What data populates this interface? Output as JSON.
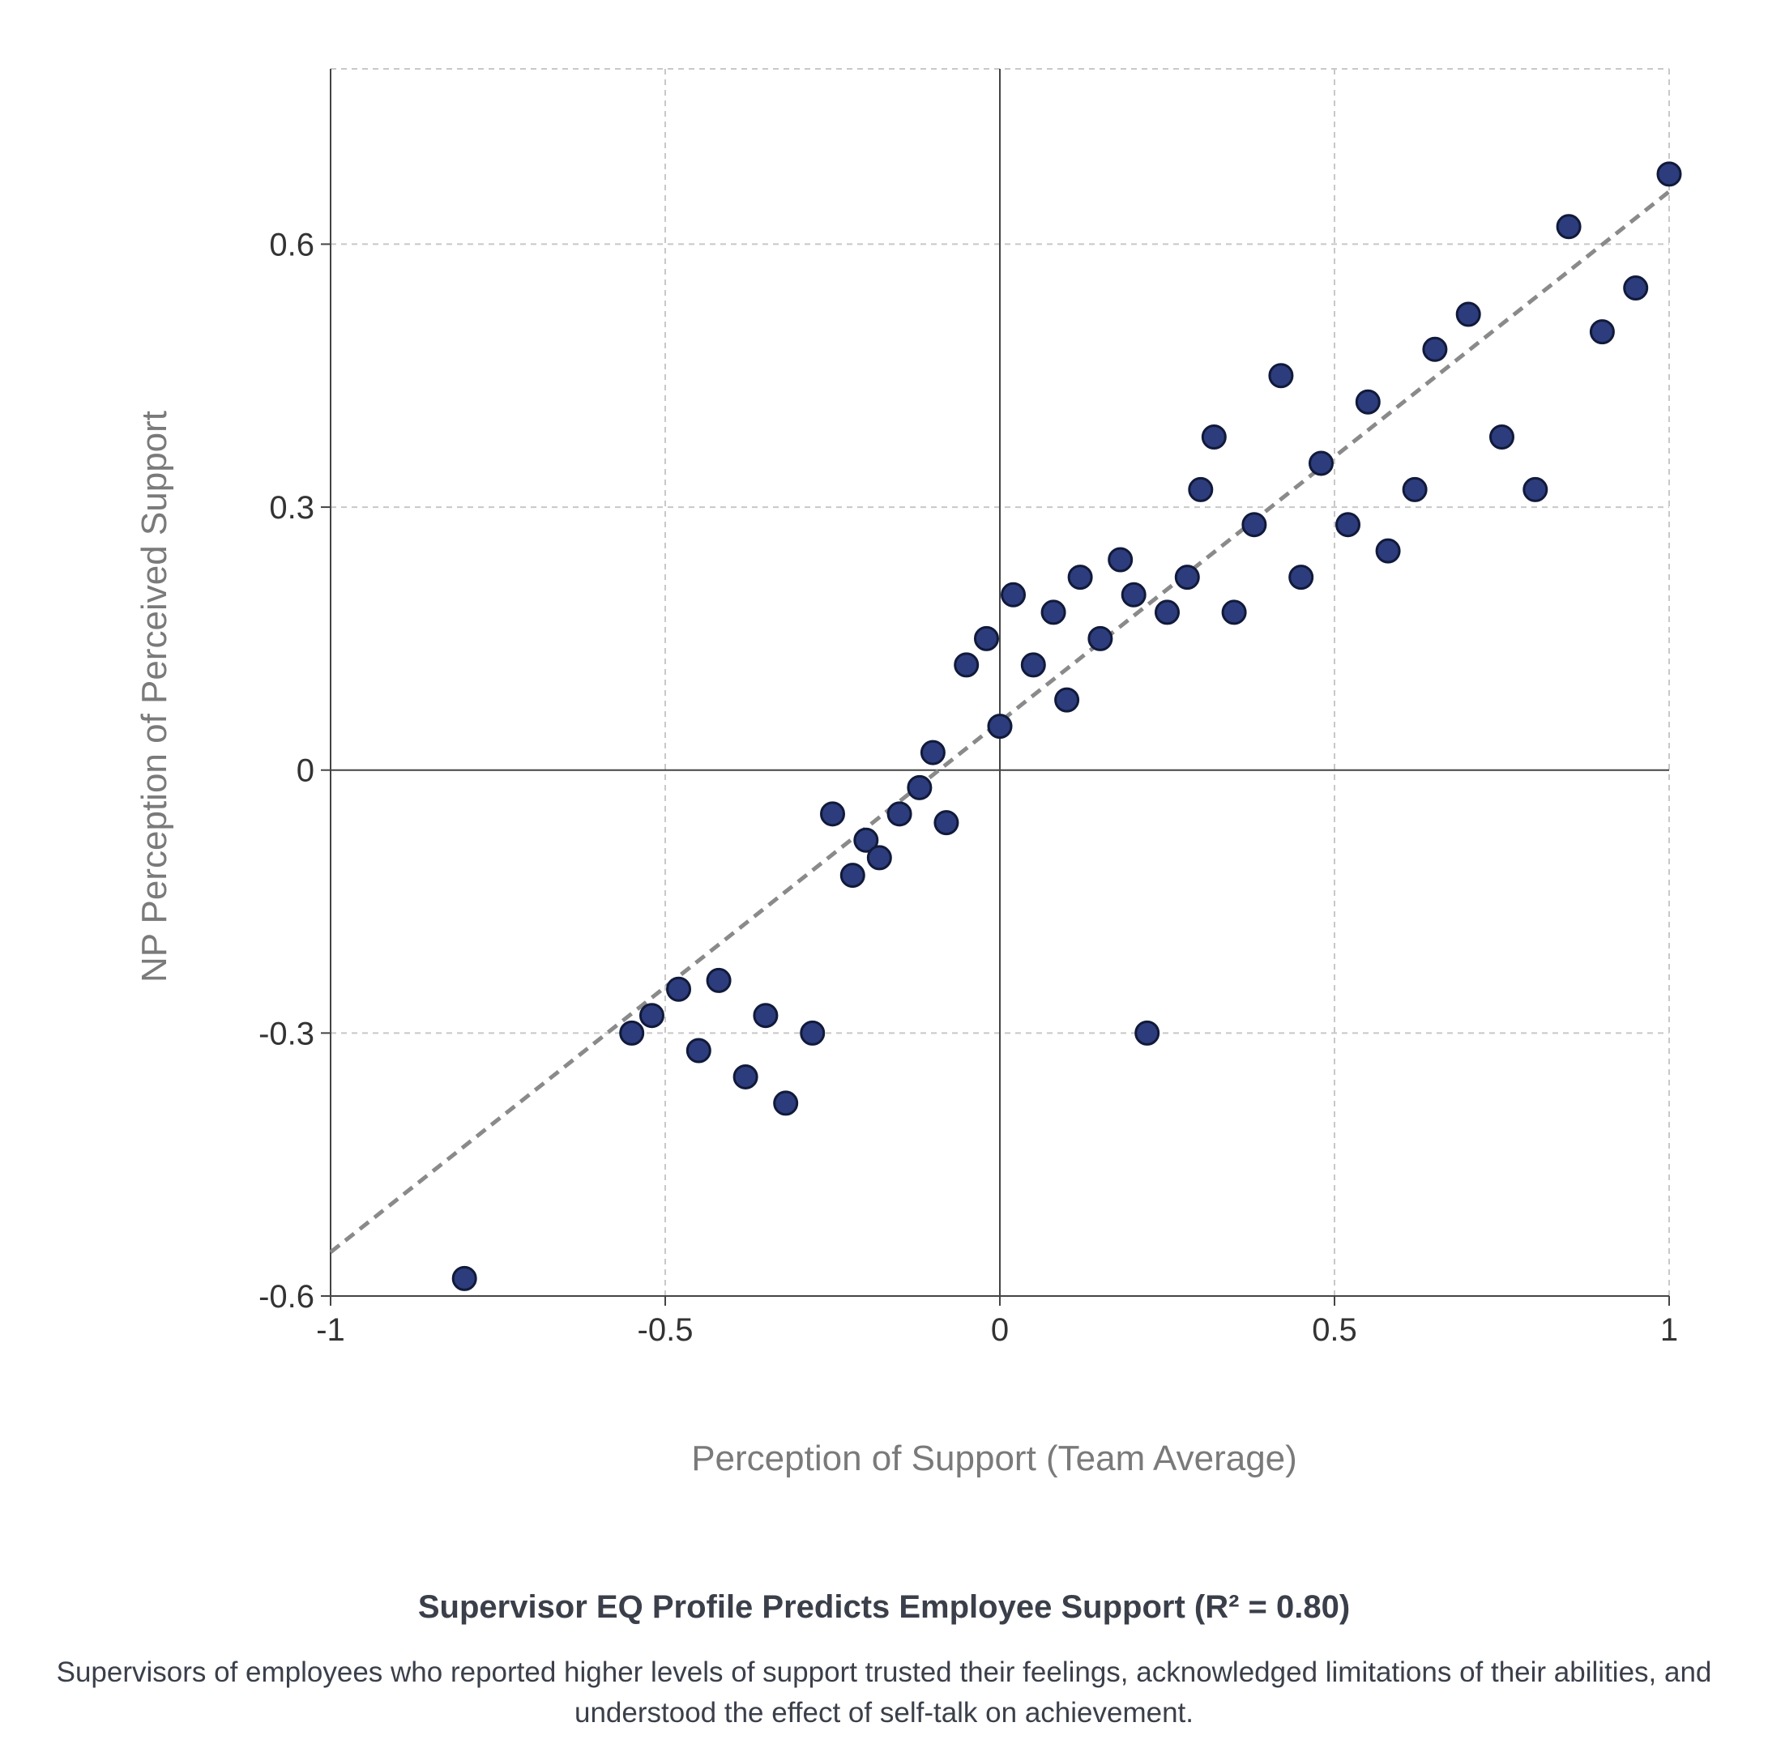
{
  "chart_data": {
    "type": "scatter",
    "title": "Supervisor EQ Profile Predicts Employee Support (R² = 0.80)",
    "subtitle": "Supervisors of employees who reported higher levels of support trusted their feelings, acknowledged limitations of their abilities, and understood the effect of self-talk on achievement.",
    "xlabel": "Perception of Support (Team Average)",
    "ylabel": "NP Perception of Perceived Support",
    "xlim": [
      -1,
      1
    ],
    "ylim": [
      -0.6,
      0.8
    ],
    "xticks": [
      -1,
      -0.5,
      0,
      0.5,
      1
    ],
    "xtick_labels": [
      "-1",
      "-0.5",
      "0",
      "0.5",
      "1"
    ],
    "yticks": [
      -0.6,
      -0.3,
      0,
      0.3,
      0.6
    ],
    "ytick_labels": [
      "-0.6",
      "-0.3",
      "0",
      "0.3",
      "0.6"
    ],
    "grid": true,
    "point_color": "#2c3c7c",
    "point_edge_color": "#111a3a",
    "trendline": {
      "x": [
        -1,
        1
      ],
      "y": [
        -0.55,
        0.66
      ],
      "color": "#8a8a8a",
      "style": "dashed"
    },
    "points": [
      [
        -0.8,
        -0.58
      ],
      [
        -0.55,
        -0.3
      ],
      [
        -0.52,
        -0.28
      ],
      [
        -0.48,
        -0.25
      ],
      [
        -0.45,
        -0.32
      ],
      [
        -0.42,
        -0.24
      ],
      [
        -0.38,
        -0.35
      ],
      [
        -0.35,
        -0.28
      ],
      [
        -0.32,
        -0.38
      ],
      [
        -0.28,
        -0.3
      ],
      [
        -0.25,
        -0.05
      ],
      [
        -0.22,
        -0.12
      ],
      [
        -0.2,
        -0.08
      ],
      [
        -0.18,
        -0.1
      ],
      [
        -0.15,
        -0.05
      ],
      [
        -0.12,
        -0.02
      ],
      [
        -0.1,
        0.02
      ],
      [
        -0.08,
        -0.06
      ],
      [
        -0.05,
        0.12
      ],
      [
        -0.02,
        0.15
      ],
      [
        0.0,
        0.05
      ],
      [
        0.02,
        0.2
      ],
      [
        0.05,
        0.12
      ],
      [
        0.08,
        0.18
      ],
      [
        0.1,
        0.08
      ],
      [
        0.12,
        0.22
      ],
      [
        0.15,
        0.15
      ],
      [
        0.18,
        0.24
      ],
      [
        0.2,
        0.2
      ],
      [
        0.22,
        -0.3
      ],
      [
        0.25,
        0.18
      ],
      [
        0.28,
        0.22
      ],
      [
        0.3,
        0.32
      ],
      [
        0.32,
        0.38
      ],
      [
        0.35,
        0.18
      ],
      [
        0.38,
        0.28
      ],
      [
        0.42,
        0.45
      ],
      [
        0.45,
        0.22
      ],
      [
        0.48,
        0.35
      ],
      [
        0.52,
        0.28
      ],
      [
        0.55,
        0.42
      ],
      [
        0.58,
        0.25
      ],
      [
        0.62,
        0.32
      ],
      [
        0.65,
        0.48
      ],
      [
        0.7,
        0.52
      ],
      [
        0.75,
        0.38
      ],
      [
        0.8,
        0.32
      ],
      [
        0.85,
        0.62
      ],
      [
        0.9,
        0.5
      ],
      [
        0.95,
        0.55
      ],
      [
        1.0,
        0.68
      ]
    ]
  }
}
